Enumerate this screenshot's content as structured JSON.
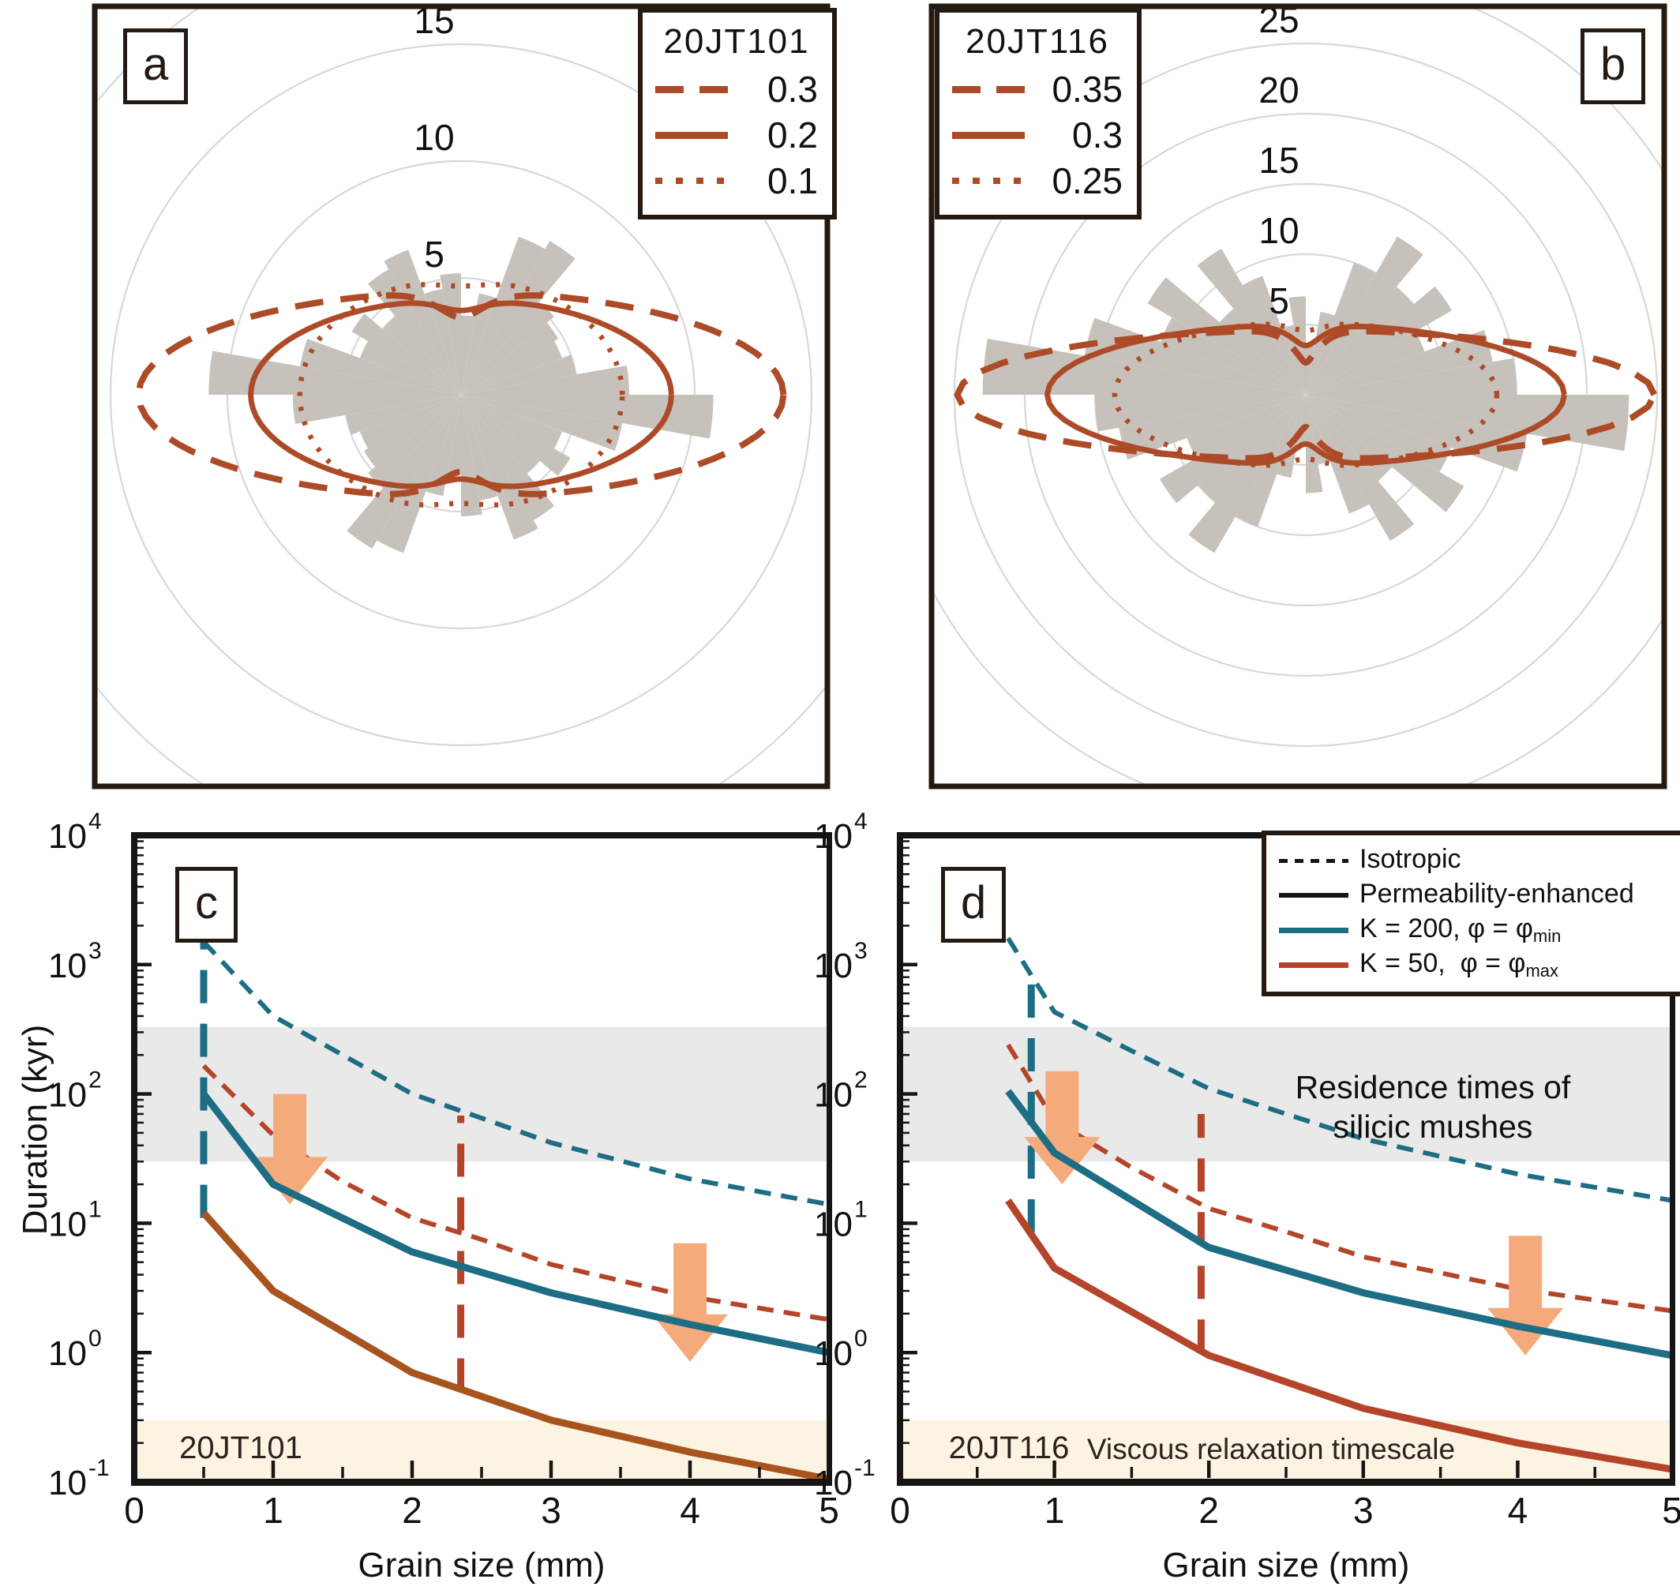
{
  "colors": {
    "frame": "#241a12",
    "rose_line": "#ad4b28",
    "petal": "#c6c2bb",
    "ring": "#d8d8d8",
    "blue": "#1d6d84",
    "red": "#b5452a",
    "brown": "#a7541e",
    "black": "#151515",
    "arrow": "#f5aa7c",
    "gray_band": "#e9e9e9",
    "cream_band": "#fcf4e2",
    "text": "#111111"
  },
  "panels": {
    "a": {
      "letter": "a",
      "legend": {
        "title": "20JT101",
        "entries": [
          {
            "style": "dashed",
            "value": "0.3"
          },
          {
            "style": "solid",
            "value": "0.2"
          },
          {
            "style": "dotted",
            "value": "0.1"
          }
        ]
      }
    },
    "b": {
      "letter": "b",
      "legend": {
        "title": "20JT116",
        "entries": [
          {
            "style": "dashed",
            "value": "0.35"
          },
          {
            "style": "solid",
            "value": "0.3"
          },
          {
            "style": "dotted",
            "value": "0.25"
          }
        ]
      }
    },
    "c": {
      "letter": "c",
      "sample_label": "20JT101",
      "xlabel": "Grain size (mm)",
      "ylabel": "Duration (kyr)"
    },
    "d": {
      "letter": "d",
      "sample_label": "20JT116",
      "xlabel": "Grain size (mm)",
      "legend": {
        "entries": [
          {
            "style": "dashed-black",
            "label": "Isotropic",
            "sub": ""
          },
          {
            "style": "solid-black",
            "label": "Permeability-enhanced",
            "sub": ""
          },
          {
            "style": "solid-blue",
            "label": "K = 200, φ = φ",
            "sub": "min"
          },
          {
            "style": "solid-red",
            "label": "K = 50,  φ = φ",
            "sub": "max"
          }
        ]
      },
      "annotations": {
        "residence": "Residence times of\nsilicic mushes",
        "viscous": "Viscous relaxation timescale"
      }
    }
  },
  "chart_data": [
    {
      "type": "rose",
      "panel": "a",
      "sample": "20JT101",
      "bin_width_deg": 10,
      "rings": [
        5,
        10,
        15,
        20
      ],
      "ring_labels": [
        5,
        10,
        15
      ],
      "values": [
        7.2,
        5,
        4.6,
        4.8,
        5.2,
        7.6,
        7.2,
        4.4,
        3.4,
        5.2,
        4.6,
        6.6,
        6.2,
        4.4,
        5.4,
        4.6,
        7,
        10.8,
        7.2,
        5,
        4.6,
        4.8,
        5.2,
        7.6,
        7.2,
        4.4,
        3.4,
        5.2,
        4.6,
        6.6,
        6.2,
        4.4,
        5.4,
        4.6,
        7,
        10.8
      ],
      "contours": [
        {
          "label": "0.3",
          "style": "dashed",
          "a": 13.8,
          "b": 4.4,
          "pinch": 0.25
        },
        {
          "label": "0.2",
          "style": "solid",
          "a": 9.0,
          "b": 4.1,
          "pinch": 0.12
        },
        {
          "label": "0.1",
          "style": "dotted",
          "a": 6.9,
          "b": 5.0,
          "pinch": 0.07
        }
      ]
    },
    {
      "type": "rose",
      "panel": "b",
      "sample": "20JT116",
      "bin_width_deg": 10,
      "rings": [
        5,
        10,
        15,
        20,
        25,
        30
      ],
      "ring_labels": [
        5,
        10,
        15,
        20,
        25
      ],
      "values": [
        15,
        13.5,
        9,
        12,
        10,
        13,
        10,
        6,
        3.5,
        7,
        5,
        9,
        12,
        8,
        13,
        11,
        16,
        23,
        15,
        13.5,
        9,
        12,
        10,
        13,
        10,
        6,
        3.5,
        7,
        5,
        9,
        12,
        8,
        13,
        11,
        16,
        23
      ],
      "contours": [
        {
          "label": "0.35",
          "style": "dashed",
          "a": 24.8,
          "b": 4.6,
          "pinch": 0.5
        },
        {
          "label": "0.3",
          "style": "solid",
          "a": 18.4,
          "b": 5.0,
          "pinch": 0.3
        },
        {
          "label": "0.25",
          "style": "dotted",
          "a": 13.6,
          "b": 5.2,
          "pinch": 0.12
        }
      ]
    },
    {
      "type": "line",
      "panel": "c",
      "title": "20JT101",
      "xlabel": "Grain size (mm)",
      "ylabel": "Duration (kyr)",
      "xlim": [
        0,
        5
      ],
      "ylog_range": [
        -1,
        4
      ],
      "bands": [
        {
          "name": "residence-times",
          "y1": 30,
          "y2": 330,
          "color_key": "gray_band"
        },
        {
          "name": "viscous-relaxation",
          "y1": 0.1,
          "y2": 0.3,
          "color_key": "cream_band"
        }
      ],
      "series": [
        {
          "name": "Isotropic K=200",
          "style": "dotted",
          "color_key": "blue",
          "points": [
            [
              0.5,
              1500
            ],
            [
              1,
              400
            ],
            [
              1.5,
              200
            ],
            [
              2,
              100
            ],
            [
              2.5,
              65
            ],
            [
              3,
              42
            ],
            [
              4,
              22
            ],
            [
              5,
              14
            ]
          ]
        },
        {
          "name": "Isotropic K=50",
          "style": "dotted",
          "color_key": "red",
          "points": [
            [
              0.5,
              165
            ],
            [
              1,
              48
            ],
            [
              1.5,
              21
            ],
            [
              2,
              11
            ],
            [
              2.5,
              7.5
            ],
            [
              3,
              4.8
            ],
            [
              4,
              2.7
            ],
            [
              5,
              1.8
            ]
          ]
        },
        {
          "name": "Permeability-enhanced K=200",
          "style": "solid",
          "color_key": "blue",
          "points": [
            [
              0.5,
              100
            ],
            [
              1,
              20
            ],
            [
              2,
              6
            ],
            [
              3,
              2.9
            ],
            [
              4,
              1.65
            ],
            [
              5,
              1.0
            ]
          ]
        },
        {
          "name": "Permeability-enhanced K=50",
          "style": "solid",
          "color_key": "brown",
          "points": [
            [
              0.5,
              12
            ],
            [
              1,
              3
            ],
            [
              2,
              0.7
            ],
            [
              3,
              0.3
            ],
            [
              4,
              0.17
            ],
            [
              5,
              0.105
            ]
          ]
        }
      ],
      "vlines": [
        {
          "x": 0.5,
          "y1": 11,
          "y2": 1500,
          "color_key": "blue"
        },
        {
          "x": 2.35,
          "y1": 0.5,
          "y2": 68,
          "color_key": "red"
        }
      ],
      "arrows": [
        {
          "x": 1.12,
          "y_from": 100,
          "y_to": 14
        },
        {
          "x": 4.0,
          "y_from": 7,
          "y_to": 0.85
        }
      ]
    },
    {
      "type": "line",
      "panel": "d",
      "title": "20JT116",
      "xlabel": "Grain size (mm)",
      "ylabel": "",
      "xlim": [
        0,
        5
      ],
      "ylog_range": [
        -1,
        4
      ],
      "bands": [
        {
          "name": "residence-times",
          "y1": 30,
          "y2": 330,
          "color_key": "gray_band"
        },
        {
          "name": "viscous-relaxation",
          "y1": 0.1,
          "y2": 0.3,
          "color_key": "cream_band"
        }
      ],
      "series": [
        {
          "name": "Isotropic K=200",
          "style": "dotted",
          "color_key": "blue",
          "points": [
            [
              0.7,
              1600
            ],
            [
              1,
              430
            ],
            [
              1.5,
              215
            ],
            [
              2,
              110
            ],
            [
              2.5,
              70
            ],
            [
              3,
              45
            ],
            [
              4,
              24
            ],
            [
              5,
              15
            ]
          ]
        },
        {
          "name": "Isotropic K=50",
          "style": "dotted",
          "color_key": "red",
          "points": [
            [
              0.7,
              240
            ],
            [
              1,
              62
            ],
            [
              1.5,
              27
            ],
            [
              2,
              13
            ],
            [
              2.5,
              8.6
            ],
            [
              3,
              5.5
            ],
            [
              4,
              3.1
            ],
            [
              5,
              2.1
            ]
          ]
        },
        {
          "name": "Permeability-enhanced K=200",
          "style": "solid",
          "color_key": "blue",
          "points": [
            [
              0.7,
              105
            ],
            [
              1,
              35
            ],
            [
              2,
              6.5
            ],
            [
              3,
              2.9
            ],
            [
              4,
              1.6
            ],
            [
              5,
              0.95
            ]
          ]
        },
        {
          "name": "Permeability-enhanced K=50",
          "style": "solid",
          "color_key": "red",
          "points": [
            [
              0.7,
              15
            ],
            [
              1,
              4.5
            ],
            [
              2,
              0.95
            ],
            [
              3,
              0.37
            ],
            [
              4,
              0.2
            ],
            [
              5,
              0.125
            ]
          ]
        }
      ],
      "vlines": [
        {
          "x": 0.85,
          "y1": 8.5,
          "y2": 800,
          "color_key": "blue"
        },
        {
          "x": 1.95,
          "y1": 1.0,
          "y2": 70,
          "color_key": "red"
        }
      ],
      "arrows": [
        {
          "x": 1.05,
          "y_from": 150,
          "y_to": 20
        },
        {
          "x": 4.05,
          "y_from": 8,
          "y_to": 0.95
        }
      ]
    }
  ]
}
